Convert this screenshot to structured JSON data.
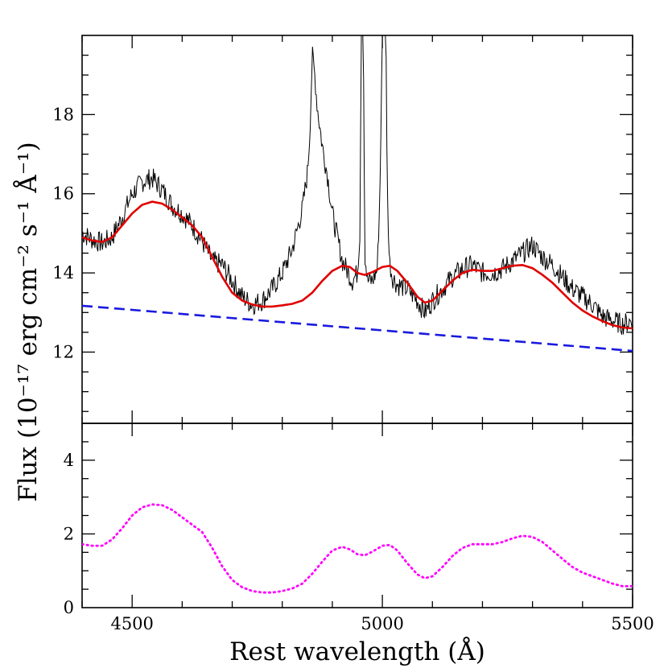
{
  "chart_data": {
    "type": "line",
    "xlabel": "Rest wavelength (Å)",
    "ylabel": "Flux (10⁻¹⁷ erg cm⁻² s⁻¹ Å⁻¹)",
    "xlim": [
      4400,
      5500
    ],
    "x_ticks": [
      4500,
      5000,
      5500
    ],
    "top_panel": {
      "ylim": [
        10.2,
        20.0
      ],
      "y_ticks": [
        12,
        14,
        16,
        18
      ],
      "series": [
        {
          "color": "#000000",
          "style": "solid-thin",
          "x": [
            4400,
            4420,
            4440,
            4460,
            4480,
            4500,
            4520,
            4540,
            4560,
            4580,
            4600,
            4620,
            4640,
            4660,
            4680,
            4700,
            4720,
            4740,
            4760,
            4780,
            4800,
            4820,
            4840,
            4850,
            4855,
            4860,
            4865,
            4870,
            4880,
            4890,
            4900,
            4910,
            4920,
            4940,
            4950,
            4955,
            4958,
            4962,
            4965,
            4970,
            4980,
            4990,
            4995,
            5000,
            5004,
            5007,
            5010,
            5014,
            5020,
            5030,
            5050,
            5070,
            5085,
            5100,
            5120,
            5140,
            5160,
            5180,
            5200,
            5220,
            5240,
            5260,
            5280,
            5300,
            5320,
            5340,
            5360,
            5380,
            5400,
            5420,
            5440,
            5460,
            5480,
            5500
          ],
          "y": [
            15.0,
            14.85,
            14.75,
            14.9,
            15.4,
            16.0,
            16.3,
            16.4,
            16.1,
            15.7,
            15.5,
            15.2,
            14.8,
            14.3,
            14.2,
            13.8,
            13.4,
            13.2,
            13.3,
            13.6,
            14.0,
            14.6,
            15.6,
            16.5,
            17.5,
            19.5,
            19.0,
            18.2,
            17.2,
            16.5,
            15.5,
            14.9,
            14.3,
            13.8,
            14.0,
            15.0,
            20.0,
            20.0,
            14.5,
            13.8,
            13.8,
            14.1,
            16.0,
            20.0,
            20.0,
            20.0,
            16.0,
            14.3,
            13.9,
            13.7,
            13.6,
            13.3,
            13.0,
            13.3,
            13.6,
            13.9,
            14.1,
            14.2,
            14.0,
            14.0,
            14.1,
            14.3,
            14.5,
            14.7,
            14.4,
            14.2,
            13.9,
            13.6,
            13.4,
            13.2,
            12.9,
            12.8,
            12.7,
            12.8
          ]
        },
        {
          "color": "#e00000",
          "style": "solid",
          "x": [
            4400,
            4420,
            4440,
            4460,
            4480,
            4500,
            4520,
            4540,
            4560,
            4580,
            4600,
            4620,
            4640,
            4660,
            4680,
            4700,
            4720,
            4740,
            4760,
            4780,
            4800,
            4820,
            4840,
            4860,
            4880,
            4900,
            4920,
            4935,
            4950,
            4965,
            4980,
            5000,
            5015,
            5030,
            5050,
            5070,
            5085,
            5100,
            5120,
            5140,
            5160,
            5180,
            5200,
            5220,
            5240,
            5260,
            5280,
            5300,
            5320,
            5340,
            5360,
            5380,
            5400,
            5420,
            5440,
            5460,
            5480,
            5500
          ],
          "y": [
            14.9,
            14.82,
            14.78,
            14.9,
            15.2,
            15.5,
            15.72,
            15.8,
            15.75,
            15.6,
            15.4,
            15.2,
            14.9,
            14.4,
            13.9,
            13.5,
            13.3,
            13.2,
            13.15,
            13.15,
            13.18,
            13.22,
            13.3,
            13.5,
            13.8,
            14.05,
            14.18,
            14.15,
            14.0,
            13.95,
            14.02,
            14.15,
            14.18,
            14.05,
            13.75,
            13.4,
            13.25,
            13.3,
            13.55,
            13.8,
            14.0,
            14.08,
            14.05,
            14.05,
            14.12,
            14.18,
            14.2,
            14.12,
            13.95,
            13.75,
            13.5,
            13.25,
            13.05,
            12.9,
            12.78,
            12.68,
            12.62,
            12.6
          ]
        },
        {
          "color": "#1a1adf",
          "style": "dashed",
          "x": [
            4400,
            5500
          ],
          "y": [
            13.17,
            12.03
          ]
        }
      ]
    },
    "bottom_panel": {
      "ylim": [
        0,
        5
      ],
      "y_ticks": [
        0,
        2,
        4
      ],
      "series": [
        {
          "color": "#ff00ff",
          "style": "dotted",
          "x": [
            4400,
            4420,
            4440,
            4460,
            4480,
            4500,
            4520,
            4540,
            4560,
            4580,
            4600,
            4620,
            4640,
            4660,
            4680,
            4700,
            4720,
            4740,
            4760,
            4780,
            4800,
            4820,
            4840,
            4860,
            4880,
            4900,
            4920,
            4935,
            4950,
            4965,
            4980,
            5000,
            5015,
            5030,
            5050,
            5070,
            5085,
            5100,
            5120,
            5140,
            5160,
            5180,
            5200,
            5220,
            5240,
            5260,
            5280,
            5300,
            5320,
            5340,
            5360,
            5380,
            5400,
            5420,
            5440,
            5460,
            5480,
            5500
          ],
          "y": [
            1.72,
            1.68,
            1.68,
            1.85,
            2.15,
            2.5,
            2.72,
            2.8,
            2.78,
            2.65,
            2.45,
            2.25,
            2.05,
            1.62,
            1.12,
            0.75,
            0.55,
            0.45,
            0.41,
            0.41,
            0.45,
            0.52,
            0.65,
            0.92,
            1.25,
            1.55,
            1.65,
            1.58,
            1.45,
            1.42,
            1.52,
            1.68,
            1.7,
            1.55,
            1.2,
            0.9,
            0.8,
            0.85,
            1.1,
            1.4,
            1.62,
            1.72,
            1.72,
            1.72,
            1.78,
            1.88,
            1.95,
            1.92,
            1.78,
            1.55,
            1.32,
            1.1,
            0.95,
            0.85,
            0.75,
            0.65,
            0.58,
            0.58
          ]
        }
      ]
    }
  }
}
